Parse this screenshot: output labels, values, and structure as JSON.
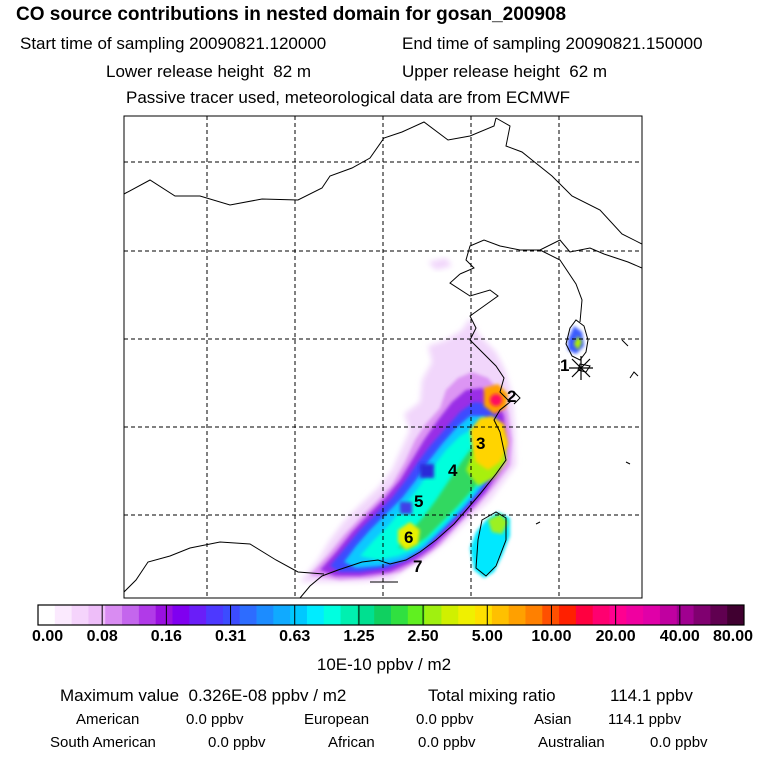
{
  "title": "CO  source contributions in nested domain for gosan_200908",
  "header": {
    "start_label": "Start time of sampling",
    "start_value": "20090821.120000",
    "end_label": "End time of sampling",
    "end_value": "20090821.150000",
    "lower_label": "Lower release height",
    "lower_value": "82 m",
    "upper_label": "Upper release height",
    "upper_value": "62 m",
    "note": "Passive tracer used, meteorological data are from ECMWF"
  },
  "map": {
    "region_labels": [
      "1",
      "2",
      "3",
      "4",
      "5",
      "6",
      "7"
    ],
    "receptor_marker": "asterisk"
  },
  "colorbar": {
    "tick_labels": [
      "0.00",
      "0.08",
      "0.16",
      "0.31",
      "0.63",
      "1.25",
      "2.50",
      "5.00",
      "10.00",
      "20.00",
      "40.00",
      "80.00"
    ],
    "colors": [
      "#ffffff",
      "#fbeafe",
      "#f5d4fc",
      "#eebef9",
      "#d98cf2",
      "#c466ed",
      "#b13ae8",
      "#9a10e0",
      "#8000f0",
      "#6a1ef8",
      "#4d39ff",
      "#3c4cff",
      "#2d6cff",
      "#1c8cff",
      "#10aaff",
      "#00c8ff",
      "#00ecff",
      "#00ffe0",
      "#00f0b0",
      "#00e090",
      "#10d060",
      "#30e040",
      "#60f020",
      "#a0f010",
      "#d0f000",
      "#f0f000",
      "#ffe000",
      "#ffc000",
      "#ffa000",
      "#ff8000",
      "#ff5000",
      "#ff2000",
      "#ff0040",
      "#ff0070",
      "#ff0090",
      "#f000a0",
      "#e000a8",
      "#c000a0",
      "#a00090",
      "#800070",
      "#600050",
      "#400030"
    ],
    "unit": "10E-10 ppbv / m2"
  },
  "stats": {
    "max_label": "Maximum value",
    "max_value": "0.326E-08 ppbv / m2",
    "total_label": "Total mixing ratio",
    "total_value": "114.1 ppbv",
    "american_label": "American",
    "american_value": "0.0 ppbv",
    "european_label": "European",
    "european_value": "0.0 ppbv",
    "asian_label": "Asian",
    "asian_value": "114.1 ppbv",
    "south_american_label": "South American",
    "south_american_value": "0.0 ppbv",
    "african_label": "African",
    "african_value": "0.0 ppbv",
    "australian_label": "Australian",
    "australian_value": "0.0 ppbv"
  }
}
